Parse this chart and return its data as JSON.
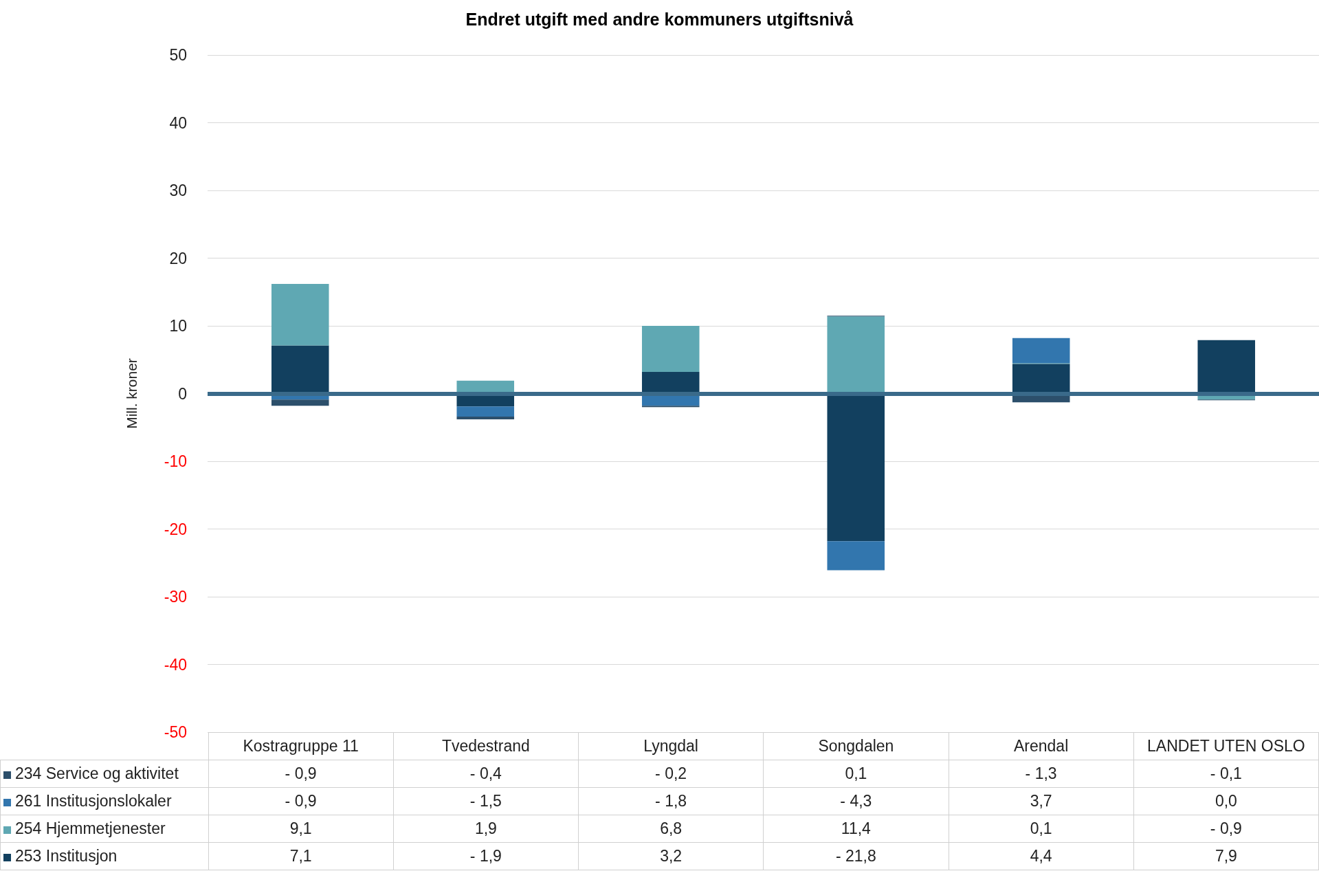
{
  "chart_data": {
    "type": "bar",
    "title": "Endret utgift med andre kommuners utgiftsnivå",
    "ylabel": "Mill. kroner",
    "stacked": true,
    "grid": "y",
    "legend": "bottom",
    "categories": [
      "Kostragruppe 11",
      "Tvedestrand",
      "Lyngdal",
      "Songdalen",
      "Arendal",
      "LANDET UTEN OSLO"
    ],
    "ref_lines": [
      {
        "axis": "y",
        "value": 0,
        "color": "#3a6a8a"
      }
    ],
    "ylim": [
      -50,
      50
    ],
    "yticks": [
      -50,
      -40,
      -30,
      -20,
      -10,
      0,
      10,
      20,
      30,
      40,
      50
    ],
    "series": [
      {
        "name": "253 Institusjon",
        "color": "#12405f",
        "values": [
          7.1,
          -1.9,
          3.2,
          -21.8,
          4.4,
          7.9
        ],
        "value_labels": [
          "7,1",
          "- 1,9",
          "3,2",
          "- 21,8",
          "4,4",
          "7,9"
        ]
      },
      {
        "name": "254 Hjemmetjenester",
        "color": "#5fa8b3",
        "values": [
          9.1,
          1.9,
          6.8,
          11.4,
          0.1,
          -0.9
        ],
        "value_labels": [
          "9,1",
          "1,9",
          "6,8",
          "11,4",
          "0,1",
          "- 0,9"
        ]
      },
      {
        "name": "261 Institusjonslokaler",
        "color": "#3276ae",
        "values": [
          -0.9,
          -1.5,
          -1.8,
          -4.3,
          3.7,
          0.0
        ],
        "value_labels": [
          "- 0,9",
          "- 1,5",
          "- 1,8",
          "- 4,3",
          "3,7",
          "0,0"
        ]
      },
      {
        "name": "234 Service og aktivitet",
        "color": "#2c4f6b",
        "values": [
          -0.9,
          -0.4,
          -0.2,
          0.1,
          -1.3,
          -0.1
        ],
        "value_labels": [
          "- 0,9",
          "- 0,4",
          "- 0,2",
          "0,1",
          "- 1,3",
          "- 0,1"
        ]
      }
    ]
  }
}
